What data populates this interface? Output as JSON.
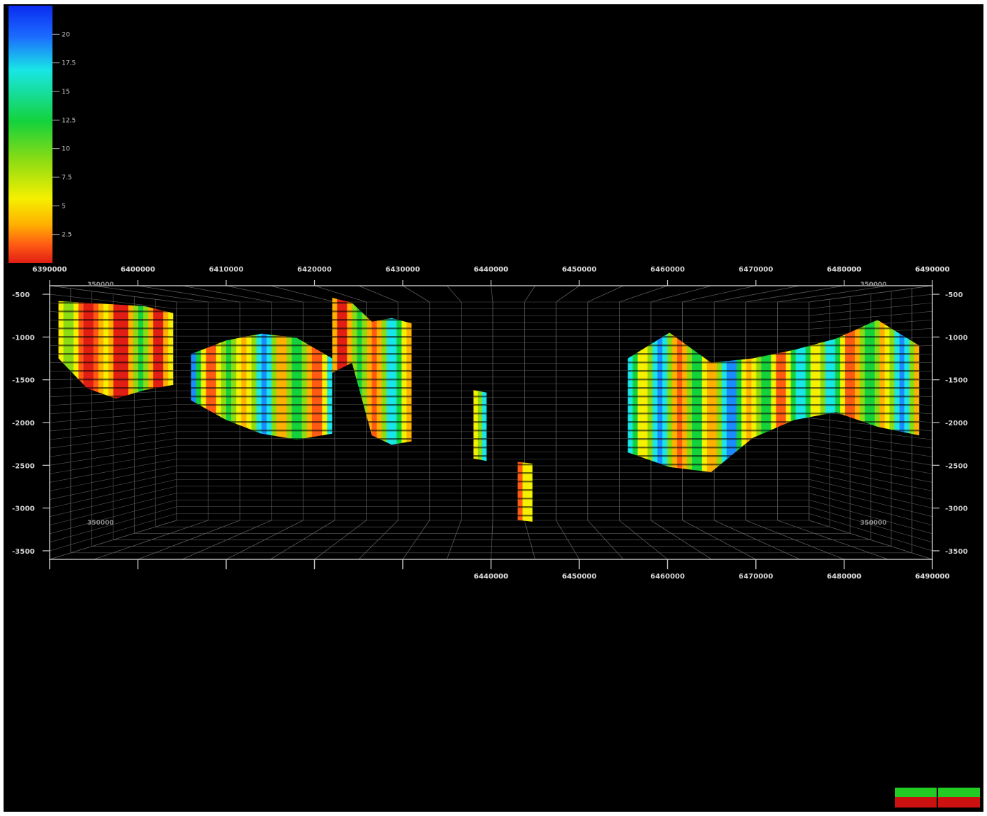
{
  "chart_data": {
    "type": "heatmap",
    "title": "",
    "xlabel": "",
    "ylabel": "",
    "x_axis_top_ticks": [
      "6390000",
      "6400000",
      "6410000",
      "6420000",
      "6430000",
      "6440000",
      "6450000",
      "6460000",
      "6470000",
      "6480000",
      "6490000"
    ],
    "x_axis_bottom_ticks": [
      "6440000",
      "6450000",
      "6460000",
      "6470000",
      "6480000",
      "6490000"
    ],
    "xlim": [
      6390000,
      6490000
    ],
    "y_axis_ticks": [
      "-500",
      "-1000",
      "-1500",
      "-2000",
      "-2500",
      "-3000",
      "-3500"
    ],
    "ylim": [
      -3600,
      -400
    ],
    "depth_axis_labels": [
      "350000",
      "350000",
      "350000",
      "350000"
    ],
    "grid": true,
    "colorbar": {
      "placement": "top-left",
      "tick_labels": [
        "20",
        "17.5",
        "15",
        "12.5",
        "10",
        "7.5",
        "5",
        "2.5"
      ],
      "range": [
        0,
        22.5
      ],
      "colors": [
        "#0a2cf0",
        "#1c8bff",
        "#19e6e6",
        "#14d23c",
        "#8cdc14",
        "#f5f000",
        "#ffb000",
        "#ff5a14",
        "#e01e14"
      ]
    },
    "surfaces": [
      {
        "x_range": [
          6391000,
          6404000
        ],
        "top": [
          -580,
          -600,
          -620,
          -640,
          -720
        ],
        "bottom": [
          -1250,
          -1600,
          -1720,
          -1620,
          -1560
        ],
        "mean_value": 4.5
      },
      {
        "x_range": [
          6406000,
          6422000
        ],
        "top": [
          -1200,
          -1040,
          -960,
          -1010,
          -1250
        ],
        "bottom": [
          -1740,
          -1970,
          -2130,
          -2200,
          -2130
        ],
        "mean_value": 11
      },
      {
        "x_range": [
          6422000,
          6431000
        ],
        "top": [
          -540,
          -600,
          -820,
          -780,
          -840
        ],
        "bottom": [
          -1420,
          -1300,
          -2150,
          -2260,
          -2220
        ],
        "mean_value": 9
      },
      {
        "x_range": [
          6438000,
          6439500
        ],
        "top": [
          -1620,
          -1650
        ],
        "bottom": [
          -2420,
          -2450
        ],
        "mean_value": 17
      },
      {
        "x_range": [
          6443000,
          6444700
        ],
        "top": [
          -2460,
          -2480
        ],
        "bottom": [
          -3140,
          -3160
        ],
        "mean_value": 3
      },
      {
        "x_range": [
          6455500,
          6488500
        ],
        "top": [
          -1250,
          -950,
          -1300,
          -1250,
          -1150,
          -1020,
          -800,
          -1100
        ],
        "bottom": [
          -2350,
          -2520,
          -2580,
          -2180,
          -1970,
          -1880,
          -2050,
          -2150
        ],
        "mean_value": 11
      }
    ]
  },
  "status_indicator": {
    "segments": [
      {
        "top_color": "#22cc22",
        "bottom_color": "#cc1111"
      },
      {
        "top_color": "#22cc22",
        "bottom_color": "#cc1111"
      }
    ]
  }
}
